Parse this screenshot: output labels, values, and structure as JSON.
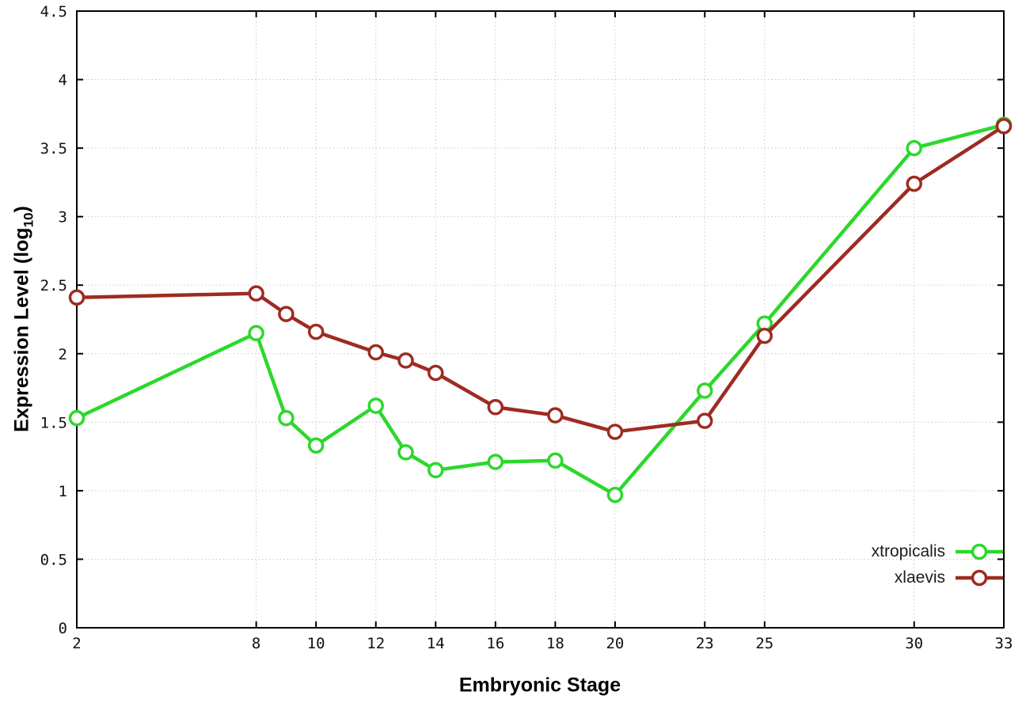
{
  "chart_data": {
    "type": "line",
    "title": "",
    "xlabel": "Embryonic Stage",
    "ylabel": "Expression Level (log10)",
    "ylabel_parts": {
      "prefix": "Expression Level (log",
      "sub": "10",
      "suffix": ")"
    },
    "xlim": [
      2,
      33
    ],
    "ylim": [
      0,
      4.5
    ],
    "xticks": [
      2,
      8,
      10,
      12,
      14,
      16,
      18,
      20,
      23,
      25,
      30,
      33
    ],
    "yticks": [
      0,
      0.5,
      1,
      1.5,
      2,
      2.5,
      3,
      3.5,
      4,
      4.5
    ],
    "grid": true,
    "legend_position": "inside-bottom-right",
    "x": [
      2,
      8,
      9,
      10,
      12,
      13,
      14,
      16,
      18,
      20,
      23,
      25,
      30,
      33
    ],
    "series": [
      {
        "name": "xtropicalis",
        "color": "#2bd82b",
        "marker": "open-circle",
        "values": [
          1.53,
          2.15,
          1.53,
          1.33,
          1.62,
          1.28,
          1.15,
          1.21,
          1.22,
          0.97,
          1.73,
          2.22,
          3.5,
          3.67
        ]
      },
      {
        "name": "xlaevis",
        "color": "#9e2b21",
        "marker": "open-circle",
        "values": [
          2.41,
          2.44,
          2.29,
          2.16,
          2.01,
          1.95,
          1.86,
          1.61,
          1.55,
          1.43,
          1.51,
          2.13,
          3.24,
          3.66
        ]
      }
    ]
  }
}
